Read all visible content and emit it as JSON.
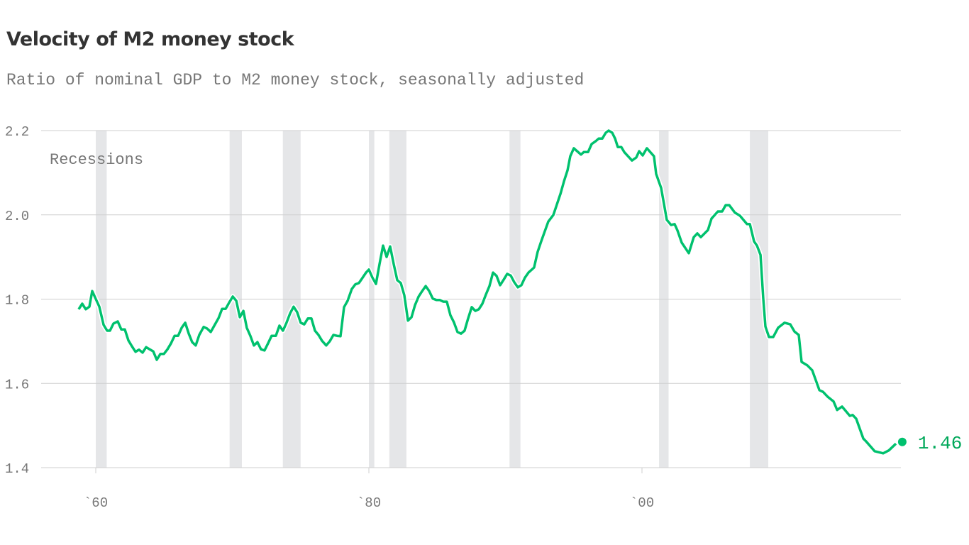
{
  "chart_data": {
    "type": "line",
    "title": "Velocity of M2 money stock",
    "subtitle": "Ratio of nominal GDP to M2 money stock, seasonally adjusted",
    "xlabel": "",
    "ylabel": "",
    "ylim": [
      1.4,
      2.2
    ],
    "xlim": [
      1955.9,
      2019.1
    ],
    "yticks": [
      {
        "value": 2.2,
        "label": "2.2"
      },
      {
        "value": 2.0,
        "label": "2.0"
      },
      {
        "value": 1.8,
        "label": "1.8"
      },
      {
        "value": 1.6,
        "label": "1.6"
      },
      {
        "value": 1.4,
        "label": "1.4"
      }
    ],
    "xticks": [
      {
        "value": 1960,
        "label": "`60"
      },
      {
        "value": 1980,
        "label": "`80"
      },
      {
        "value": 2000,
        "label": "`00"
      }
    ],
    "grid": "horizontal",
    "line_color": "#00c16e",
    "recession_color": "#e5e6e8",
    "recession_label": "Recessions",
    "recessions": [
      [
        1960.0,
        1960.8
      ],
      [
        1969.8,
        1970.7
      ],
      [
        1973.7,
        1975.0
      ],
      [
        1980.0,
        1980.4
      ],
      [
        1981.5,
        1982.75
      ],
      [
        1990.3,
        1991.1
      ],
      [
        2001.25,
        2001.95
      ],
      [
        2007.9,
        2009.25
      ]
    ],
    "end_label": "1.46",
    "end_point": [
      2019.06,
      1.461
    ],
    "points": [
      [
        1958.75,
        1.776
      ],
      [
        1959.01,
        1.789
      ],
      [
        1959.27,
        1.776
      ],
      [
        1959.53,
        1.782
      ],
      [
        1959.74,
        1.819
      ],
      [
        1960.26,
        1.782
      ],
      [
        1960.57,
        1.739
      ],
      [
        1960.83,
        1.725
      ],
      [
        1961.04,
        1.725
      ],
      [
        1961.3,
        1.742
      ],
      [
        1961.61,
        1.747
      ],
      [
        1961.87,
        1.728
      ],
      [
        1962.13,
        1.728
      ],
      [
        1962.39,
        1.702
      ],
      [
        1962.65,
        1.688
      ],
      [
        1962.91,
        1.675
      ],
      [
        1963.17,
        1.68
      ],
      [
        1963.43,
        1.673
      ],
      [
        1963.69,
        1.686
      ],
      [
        1963.95,
        1.681
      ],
      [
        1964.21,
        1.676
      ],
      [
        1964.47,
        1.656
      ],
      [
        1964.73,
        1.67
      ],
      [
        1964.99,
        1.67
      ],
      [
        1965.25,
        1.681
      ],
      [
        1965.51,
        1.695
      ],
      [
        1965.77,
        1.713
      ],
      [
        1966.03,
        1.713
      ],
      [
        1966.29,
        1.732
      ],
      [
        1966.55,
        1.744
      ],
      [
        1966.81,
        1.718
      ],
      [
        1967.06,
        1.698
      ],
      [
        1967.32,
        1.69
      ],
      [
        1967.58,
        1.715
      ],
      [
        1967.9,
        1.734
      ],
      [
        1968.16,
        1.73
      ],
      [
        1968.42,
        1.722
      ],
      [
        1968.68,
        1.737
      ],
      [
        1968.99,
        1.755
      ],
      [
        1969.25,
        1.777
      ],
      [
        1969.51,
        1.777
      ],
      [
        1969.77,
        1.792
      ],
      [
        1970.03,
        1.806
      ],
      [
        1970.29,
        1.796
      ],
      [
        1970.55,
        1.757
      ],
      [
        1970.81,
        1.772
      ],
      [
        1971.06,
        1.732
      ],
      [
        1971.32,
        1.713
      ],
      [
        1971.58,
        1.69
      ],
      [
        1971.84,
        1.698
      ],
      [
        1972.1,
        1.681
      ],
      [
        1972.36,
        1.678
      ],
      [
        1972.62,
        1.695
      ],
      [
        1972.88,
        1.713
      ],
      [
        1973.19,
        1.713
      ],
      [
        1973.45,
        1.737
      ],
      [
        1973.71,
        1.725
      ],
      [
        1973.97,
        1.744
      ],
      [
        1974.23,
        1.766
      ],
      [
        1974.49,
        1.782
      ],
      [
        1974.75,
        1.769
      ],
      [
        1975.01,
        1.744
      ],
      [
        1975.27,
        1.74
      ],
      [
        1975.53,
        1.754
      ],
      [
        1975.79,
        1.754
      ],
      [
        1976.05,
        1.725
      ],
      [
        1976.31,
        1.715
      ],
      [
        1976.57,
        1.701
      ],
      [
        1976.88,
        1.69
      ],
      [
        1977.14,
        1.7
      ],
      [
        1977.4,
        1.715
      ],
      [
        1977.66,
        1.713
      ],
      [
        1977.92,
        1.712
      ],
      [
        1978.18,
        1.781
      ],
      [
        1978.44,
        1.796
      ],
      [
        1978.75,
        1.824
      ],
      [
        1979.01,
        1.835
      ],
      [
        1979.27,
        1.838
      ],
      [
        1979.48,
        1.848
      ],
      [
        1979.79,
        1.863
      ],
      [
        1980.0,
        1.87
      ],
      [
        1980.26,
        1.851
      ],
      [
        1980.52,
        1.836
      ],
      [
        1980.78,
        1.883
      ],
      [
        1981.04,
        1.927
      ],
      [
        1981.3,
        1.9
      ],
      [
        1981.56,
        1.925
      ],
      [
        1981.82,
        1.883
      ],
      [
        1982.08,
        1.845
      ],
      [
        1982.34,
        1.838
      ],
      [
        1982.6,
        1.809
      ],
      [
        1982.86,
        1.749
      ],
      [
        1983.12,
        1.757
      ],
      [
        1983.38,
        1.786
      ],
      [
        1983.64,
        1.806
      ],
      [
        1983.9,
        1.819
      ],
      [
        1984.16,
        1.831
      ],
      [
        1984.42,
        1.819
      ],
      [
        1984.68,
        1.801
      ],
      [
        1984.94,
        1.798
      ],
      [
        1985.19,
        1.798
      ],
      [
        1985.45,
        1.794
      ],
      [
        1985.71,
        1.794
      ],
      [
        1985.97,
        1.762
      ],
      [
        1986.23,
        1.745
      ],
      [
        1986.49,
        1.722
      ],
      [
        1986.75,
        1.718
      ],
      [
        1987.01,
        1.725
      ],
      [
        1987.27,
        1.754
      ],
      [
        1987.53,
        1.781
      ],
      [
        1987.79,
        1.772
      ],
      [
        1988.05,
        1.776
      ],
      [
        1988.31,
        1.789
      ],
      [
        1988.57,
        1.811
      ],
      [
        1988.83,
        1.831
      ],
      [
        1989.09,
        1.863
      ],
      [
        1989.35,
        1.855
      ],
      [
        1989.61,
        1.833
      ],
      [
        1989.87,
        1.846
      ],
      [
        1990.13,
        1.86
      ],
      [
        1990.39,
        1.856
      ],
      [
        1990.65,
        1.84
      ],
      [
        1990.91,
        1.828
      ],
      [
        1991.17,
        1.833
      ],
      [
        1991.43,
        1.851
      ],
      [
        1991.69,
        1.863
      ],
      [
        1992.1,
        1.875
      ],
      [
        1992.36,
        1.912
      ],
      [
        1992.62,
        1.937
      ],
      [
        1993.14,
        1.984
      ],
      [
        1993.51,
        2.0
      ],
      [
        1994.03,
        2.05
      ],
      [
        1994.29,
        2.08
      ],
      [
        1994.55,
        2.106
      ],
      [
        1994.75,
        2.139
      ],
      [
        1995.01,
        2.158
      ],
      [
        1995.53,
        2.143
      ],
      [
        1995.74,
        2.149
      ],
      [
        1996.05,
        2.149
      ],
      [
        1996.31,
        2.168
      ],
      [
        1996.62,
        2.175
      ],
      [
        1996.83,
        2.181
      ],
      [
        1997.09,
        2.181
      ],
      [
        1997.35,
        2.195
      ],
      [
        1997.56,
        2.2
      ],
      [
        1997.82,
        2.195
      ],
      [
        1998.03,
        2.181
      ],
      [
        1998.23,
        2.161
      ],
      [
        1998.49,
        2.161
      ],
      [
        1998.7,
        2.149
      ],
      [
        1999.27,
        2.129
      ],
      [
        1999.58,
        2.136
      ],
      [
        1999.79,
        2.151
      ],
      [
        2000.05,
        2.141
      ],
      [
        2000.36,
        2.158
      ],
      [
        2000.88,
        2.139
      ],
      [
        2001.04,
        2.097
      ],
      [
        2001.4,
        2.064
      ],
      [
        2001.82,
        1.988
      ],
      [
        2002.13,
        1.976
      ],
      [
        2002.39,
        1.978
      ],
      [
        2002.6,
        1.963
      ],
      [
        2002.91,
        1.934
      ],
      [
        2003.43,
        1.909
      ],
      [
        2003.79,
        1.947
      ],
      [
        2004.05,
        1.956
      ],
      [
        2004.31,
        1.947
      ],
      [
        2004.83,
        1.964
      ],
      [
        2005.09,
        1.991
      ],
      [
        2005.56,
        2.008
      ],
      [
        2005.87,
        2.008
      ],
      [
        2006.13,
        2.023
      ],
      [
        2006.39,
        2.023
      ],
      [
        2006.81,
        2.005
      ],
      [
        2007.17,
        1.998
      ],
      [
        2007.69,
        1.978
      ],
      [
        2007.9,
        1.978
      ],
      [
        2008.21,
        1.937
      ],
      [
        2008.42,
        1.927
      ],
      [
        2008.68,
        1.905
      ],
      [
        2008.88,
        1.803
      ],
      [
        2009.04,
        1.735
      ],
      [
        2009.3,
        1.71
      ],
      [
        2009.61,
        1.71
      ],
      [
        2009.97,
        1.732
      ],
      [
        2010.44,
        1.744
      ],
      [
        2010.86,
        1.74
      ],
      [
        2011.17,
        1.723
      ],
      [
        2011.48,
        1.715
      ],
      [
        2011.69,
        1.651
      ],
      [
        2012.1,
        1.643
      ],
      [
        2012.47,
        1.631
      ],
      [
        2012.99,
        1.584
      ],
      [
        2013.25,
        1.58
      ],
      [
        2013.61,
        1.568
      ],
      [
        2014.03,
        1.557
      ],
      [
        2014.29,
        1.537
      ],
      [
        2014.65,
        1.545
      ],
      [
        2015.22,
        1.523
      ],
      [
        2015.43,
        1.525
      ],
      [
        2015.69,
        1.516
      ],
      [
        2016.21,
        1.469
      ],
      [
        2016.42,
        1.462
      ],
      [
        2017.04,
        1.439
      ],
      [
        2017.66,
        1.434
      ],
      [
        2018.08,
        1.441
      ],
      [
        2018.6,
        1.457
      ]
    ]
  }
}
